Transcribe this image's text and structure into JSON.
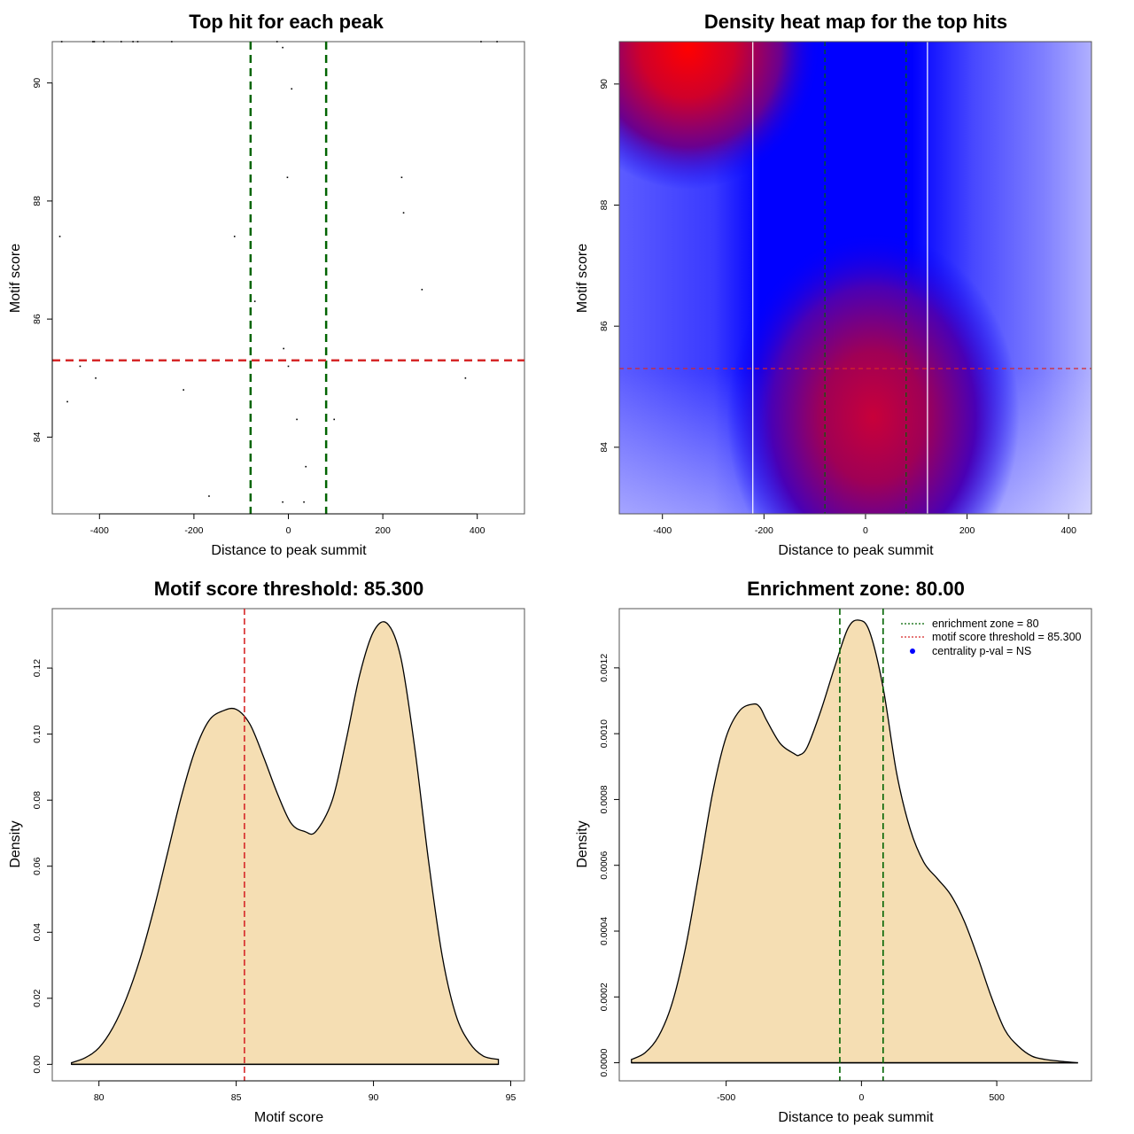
{
  "chart_data": [
    {
      "id": "scatter",
      "type": "scatter",
      "title": "Top hit for each peak",
      "xlabel": "Distance to peak summit",
      "ylabel": "Motif score",
      "xlim": [
        -500,
        500
      ],
      "ylim": [
        82.7,
        90.7
      ],
      "xticks": [
        -400,
        -200,
        0,
        200,
        400
      ],
      "yticks": [
        84,
        86,
        88,
        90
      ],
      "vlines": [
        {
          "x": -80,
          "color": "#006400",
          "style": "dashed"
        },
        {
          "x": 80,
          "color": "#006400",
          "style": "dashed"
        }
      ],
      "hlines": [
        {
          "y": 85.3,
          "color": "#d62728",
          "style": "dashed"
        }
      ],
      "points": [
        {
          "x": -480,
          "y": 90.7
        },
        {
          "x": -414,
          "y": 90.7
        },
        {
          "x": -411,
          "y": 90.7
        },
        {
          "x": -391,
          "y": 90.7
        },
        {
          "x": -354,
          "y": 90.7
        },
        {
          "x": -329,
          "y": 90.7
        },
        {
          "x": -319,
          "y": 90.7
        },
        {
          "x": -247,
          "y": 90.7
        },
        {
          "x": -24,
          "y": 90.7
        },
        {
          "x": -12,
          "y": 90.6
        },
        {
          "x": 7,
          "y": 89.9
        },
        {
          "x": 408,
          "y": 90.7
        },
        {
          "x": 442,
          "y": 90.7
        },
        {
          "x": -484,
          "y": 87.4
        },
        {
          "x": -114,
          "y": 87.4
        },
        {
          "x": -2,
          "y": 88.4
        },
        {
          "x": 240,
          "y": 88.4
        },
        {
          "x": 244,
          "y": 87.8
        },
        {
          "x": 283,
          "y": 86.5
        },
        {
          "x": -71,
          "y": 86.3
        },
        {
          "x": -10,
          "y": 85.5
        },
        {
          "x": 0,
          "y": 85.2
        },
        {
          "x": -441,
          "y": 85.2
        },
        {
          "x": -408,
          "y": 85.0
        },
        {
          "x": -222,
          "y": 84.8
        },
        {
          "x": -468,
          "y": 84.6
        },
        {
          "x": 375,
          "y": 85.0
        },
        {
          "x": 18,
          "y": 84.3
        },
        {
          "x": 97,
          "y": 84.3
        },
        {
          "x": 37,
          "y": 83.5
        },
        {
          "x": -168,
          "y": 83.0
        },
        {
          "x": -12,
          "y": 82.9
        },
        {
          "x": 33,
          "y": 82.9
        }
      ]
    },
    {
      "id": "heatmap",
      "type": "heatmap",
      "title": "Density heat map for the top hits",
      "xlabel": "Distance to peak summit",
      "ylabel": "Motif score",
      "xlim": [
        -485,
        445
      ],
      "ylim": [
        82.9,
        90.7
      ],
      "xticks": [
        -400,
        -200,
        0,
        200,
        400
      ],
      "yticks": [
        84,
        86,
        88,
        90
      ],
      "colormap": [
        "#ffffff",
        "#0000ff",
        "#ff0000"
      ],
      "density_hotspots": [
        {
          "x": -350,
          "y": 90.6,
          "intensity": 1.0
        },
        {
          "x": 15,
          "y": 84.5,
          "intensity": 0.85
        }
      ],
      "white_vlines": [
        -222,
        122
      ],
      "vlines": [
        {
          "x": -80,
          "color": "#006400",
          "style": "dashed"
        },
        {
          "x": 80,
          "color": "#006400",
          "style": "dashed"
        }
      ],
      "hlines": [
        {
          "y": 85.3,
          "color": "#d62728",
          "style": "dashed"
        }
      ]
    },
    {
      "id": "score-density",
      "type": "area",
      "title": "Motif score threshold: 85.300",
      "xlabel": "Motif score",
      "ylabel": "Density",
      "xlim": [
        78.3,
        95.5
      ],
      "ylim": [
        -0.005,
        0.138
      ],
      "xticks": [
        80,
        85,
        90,
        95
      ],
      "yticks": [
        0.0,
        0.02,
        0.04,
        0.06,
        0.08,
        0.1,
        0.12
      ],
      "ytick_labels": [
        "0.00",
        "0.02",
        "0.04",
        "0.06",
        "0.08",
        "0.10",
        "0.12"
      ],
      "fill": "#f5deb3",
      "vlines": [
        {
          "x": 85.3,
          "color": "#d62728",
          "style": "dashed"
        }
      ],
      "x": [
        79.0,
        79.5,
        80.0,
        80.5,
        81.0,
        81.5,
        82.0,
        82.5,
        83.0,
        83.5,
        84.0,
        84.5,
        85.0,
        85.5,
        86.0,
        86.5,
        87.0,
        87.5,
        87.9,
        88.5,
        89.0,
        89.5,
        90.0,
        90.5,
        91.0,
        91.5,
        92.0,
        92.5,
        93.0,
        93.5,
        94.0,
        94.55
      ],
      "y": [
        0.0005,
        0.002,
        0.005,
        0.011,
        0.02,
        0.032,
        0.047,
        0.064,
        0.081,
        0.095,
        0.104,
        0.107,
        0.1075,
        0.103,
        0.093,
        0.082,
        0.073,
        0.0705,
        0.0705,
        0.08,
        0.098,
        0.118,
        0.131,
        0.1335,
        0.123,
        0.096,
        0.062,
        0.033,
        0.015,
        0.0065,
        0.0025,
        0.0015
      ]
    },
    {
      "id": "distance-density",
      "type": "area",
      "title": "Enrichment zone: 80.00",
      "xlabel": "Distance to peak summit",
      "ylabel": "Density",
      "xlim": [
        -895,
        850
      ],
      "ylim": [
        -5.5e-05,
        0.00138
      ],
      "xticks": [
        -500,
        0,
        500
      ],
      "yticks": [
        0.0,
        0.0002,
        0.0004,
        0.0006,
        0.0008,
        0.001,
        0.0012
      ],
      "ytick_labels": [
        "0.0000",
        "0.0002",
        "0.0004",
        "0.0006",
        "0.0008",
        "0.0010",
        "0.0012"
      ],
      "fill": "#f5deb3",
      "vlines": [
        {
          "x": -80,
          "color": "#006400",
          "style": "dashed"
        },
        {
          "x": 80,
          "color": "#006400",
          "style": "dashed"
        }
      ],
      "x": [
        -850,
        -800,
        -750,
        -700,
        -650,
        -600,
        -550,
        -500,
        -450,
        -400,
        -375,
        -350,
        -300,
        -250,
        -230,
        -200,
        -150,
        -100,
        -50,
        -10,
        30,
        80,
        130,
        180,
        230,
        280,
        330,
        380,
        430,
        480,
        530,
        580,
        630,
        680,
        730,
        800
      ],
      "y": [
        1e-05,
        3e-05,
        8e-05,
        0.00018,
        0.00035,
        0.00058,
        0.00082,
        0.00099,
        0.00107,
        0.00109,
        0.00108,
        0.00104,
        0.00097,
        0.00094,
        0.000935,
        0.00096,
        0.00107,
        0.0012,
        0.00132,
        0.001345,
        0.00131,
        0.00114,
        0.00088,
        0.00071,
        0.00061,
        0.00056,
        0.00051,
        0.00043,
        0.00032,
        0.0002,
        0.0001,
        5e-05,
        2e-05,
        1e-05,
        5e-06,
        0.0
      ]
    }
  ],
  "legend": {
    "items": [
      {
        "label": "enrichment zone = 80",
        "color": "#006400",
        "kind": "dotted-line"
      },
      {
        "label": "motif score threshold = 85.300",
        "color": "#d62728",
        "kind": "dotted-line"
      },
      {
        "label": "centrality p-val = NS",
        "color": "#0000ff",
        "kind": "dot"
      }
    ],
    "placement": "top-right"
  }
}
